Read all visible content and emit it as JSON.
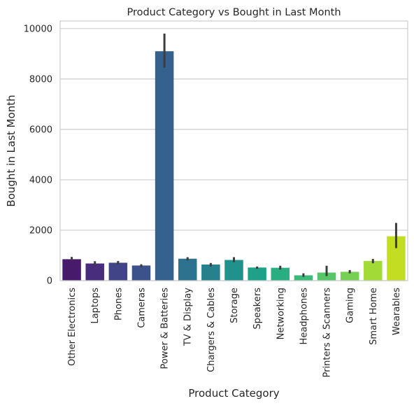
{
  "chart_data": {
    "type": "bar",
    "title": "Product Category vs Bought in Last Month",
    "xlabel": "Product Category",
    "ylabel": "Bought in Last Month",
    "ylim": [
      0,
      10300
    ],
    "yticks": [
      0,
      2000,
      4000,
      6000,
      8000,
      10000
    ],
    "grid": true,
    "categories": [
      "Other Electronics",
      "Laptops",
      "Phones",
      "Cameras",
      "Power & Batteries",
      "TV & Display",
      "Chargers & Cables",
      "Storage",
      "Speakers",
      "Networking",
      "Headphones",
      "Printers & Scanners",
      "Gaming",
      "Smart Home",
      "Wearables"
    ],
    "values": [
      850,
      680,
      710,
      600,
      9100,
      870,
      640,
      820,
      520,
      510,
      210,
      320,
      350,
      780,
      1760
    ],
    "error_low": [
      790,
      600,
      640,
      540,
      8450,
      800,
      560,
      730,
      470,
      440,
      150,
      180,
      290,
      690,
      1290
    ],
    "error_high": [
      940,
      770,
      780,
      650,
      9800,
      930,
      700,
      930,
      560,
      590,
      290,
      590,
      420,
      860,
      2290
    ],
    "colors": [
      "#481a6c",
      "#472d7b",
      "#414487",
      "#3b528b",
      "#34618d",
      "#2c718e",
      "#27808e",
      "#21918c",
      "#1fa088",
      "#28ae80",
      "#3bbb75",
      "#56c667",
      "#75d054",
      "#a2da37",
      "#c3dd22"
    ]
  }
}
